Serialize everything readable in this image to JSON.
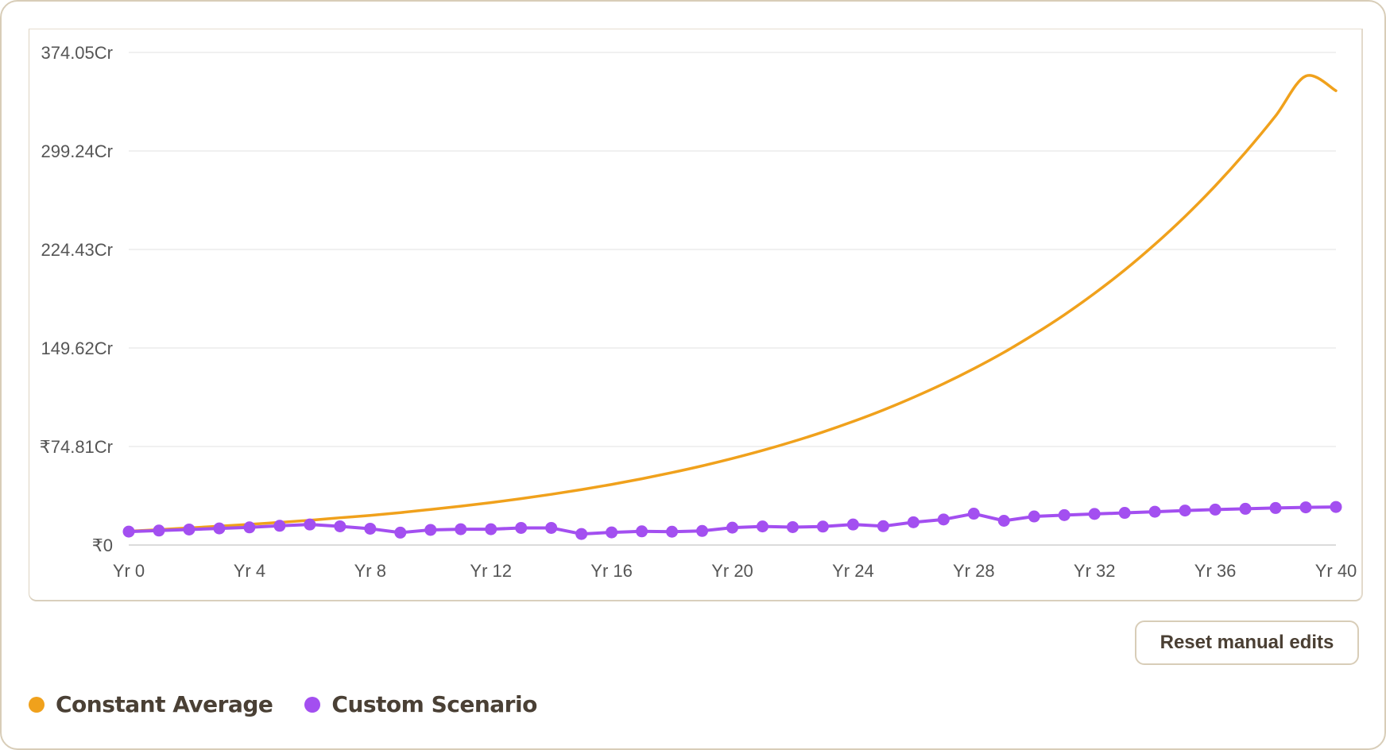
{
  "chart_data": {
    "type": "line",
    "title": "",
    "xlabel": "",
    "ylabel": "",
    "y_ticks": [
      "₹0",
      "₹74.81Cr",
      "149.62Cr",
      "224.43Cr",
      "299.24Cr",
      "374.05Cr"
    ],
    "y_tick_values": [
      0,
      74.81,
      149.62,
      224.43,
      299.24,
      374.05
    ],
    "ylim": [
      0,
      374.05
    ],
    "x_ticks": [
      "Yr 0",
      "Yr 4",
      "Yr 8",
      "Yr 12",
      "Yr 16",
      "Yr 20",
      "Yr 24",
      "Yr 28",
      "Yr 32",
      "Yr 36",
      "Yr 40"
    ],
    "x_tick_values": [
      0,
      4,
      8,
      12,
      16,
      20,
      24,
      28,
      32,
      36,
      40
    ],
    "xlim": [
      0,
      40
    ],
    "grid": true,
    "legend_position": "bottom-left",
    "series": [
      {
        "name": "Constant Average",
        "color": "#f0a11c",
        "markers": false,
        "x": [
          0,
          1,
          2,
          3,
          4,
          5,
          6,
          7,
          8,
          9,
          10,
          11,
          12,
          13,
          14,
          15,
          16,
          17,
          18,
          19,
          20,
          21,
          22,
          23,
          24,
          25,
          26,
          27,
          28,
          29,
          30,
          31,
          32,
          33,
          34,
          35,
          36,
          37,
          38,
          39,
          40
        ],
        "values": [
          10.5,
          11.7,
          13.0,
          14.3,
          15.7,
          17.2,
          18.8,
          20.7,
          22.5,
          24.6,
          27.0,
          29.5,
          32.2,
          35.2,
          38.5,
          42.1,
          46.0,
          50.3,
          55.0,
          60.1,
          65.7,
          71.8,
          78.5,
          85.8,
          93.8,
          102.5,
          112.1,
          122.5,
          133.9,
          146.3,
          160.0,
          174.8,
          191.1,
          208.8,
          228.3,
          249.5,
          272.7,
          298.1,
          325.8,
          356.1,
          345.0
        ]
      },
      {
        "name": "Custom Scenario",
        "color": "#a34ff0",
        "markers": true,
        "x": [
          0,
          1,
          2,
          3,
          4,
          5,
          6,
          7,
          8,
          9,
          10,
          11,
          12,
          13,
          14,
          15,
          16,
          17,
          18,
          19,
          20,
          21,
          22,
          23,
          24,
          25,
          26,
          27,
          28,
          29,
          30,
          31,
          32,
          33,
          34,
          35,
          36,
          37,
          38,
          39,
          40
        ],
        "values": [
          10.2,
          11.0,
          11.8,
          12.6,
          13.4,
          14.6,
          15.6,
          14.2,
          12.4,
          9.4,
          11.5,
          12.0,
          12.0,
          13.0,
          13.0,
          8.4,
          9.6,
          10.4,
          10.1,
          10.7,
          13.2,
          14.1,
          13.6,
          14.0,
          15.6,
          14.3,
          17.3,
          19.4,
          23.8,
          18.4,
          21.7,
          22.7,
          23.6,
          24.4,
          25.3,
          26.2,
          26.9,
          27.5,
          28.1,
          28.6,
          28.9
        ]
      }
    ]
  },
  "legend": {
    "items": [
      {
        "label": "Constant Average",
        "color": "#f0a11c"
      },
      {
        "label": "Custom Scenario",
        "color": "#a34ff0"
      }
    ]
  },
  "controls": {
    "reset_label": "Reset manual edits"
  }
}
